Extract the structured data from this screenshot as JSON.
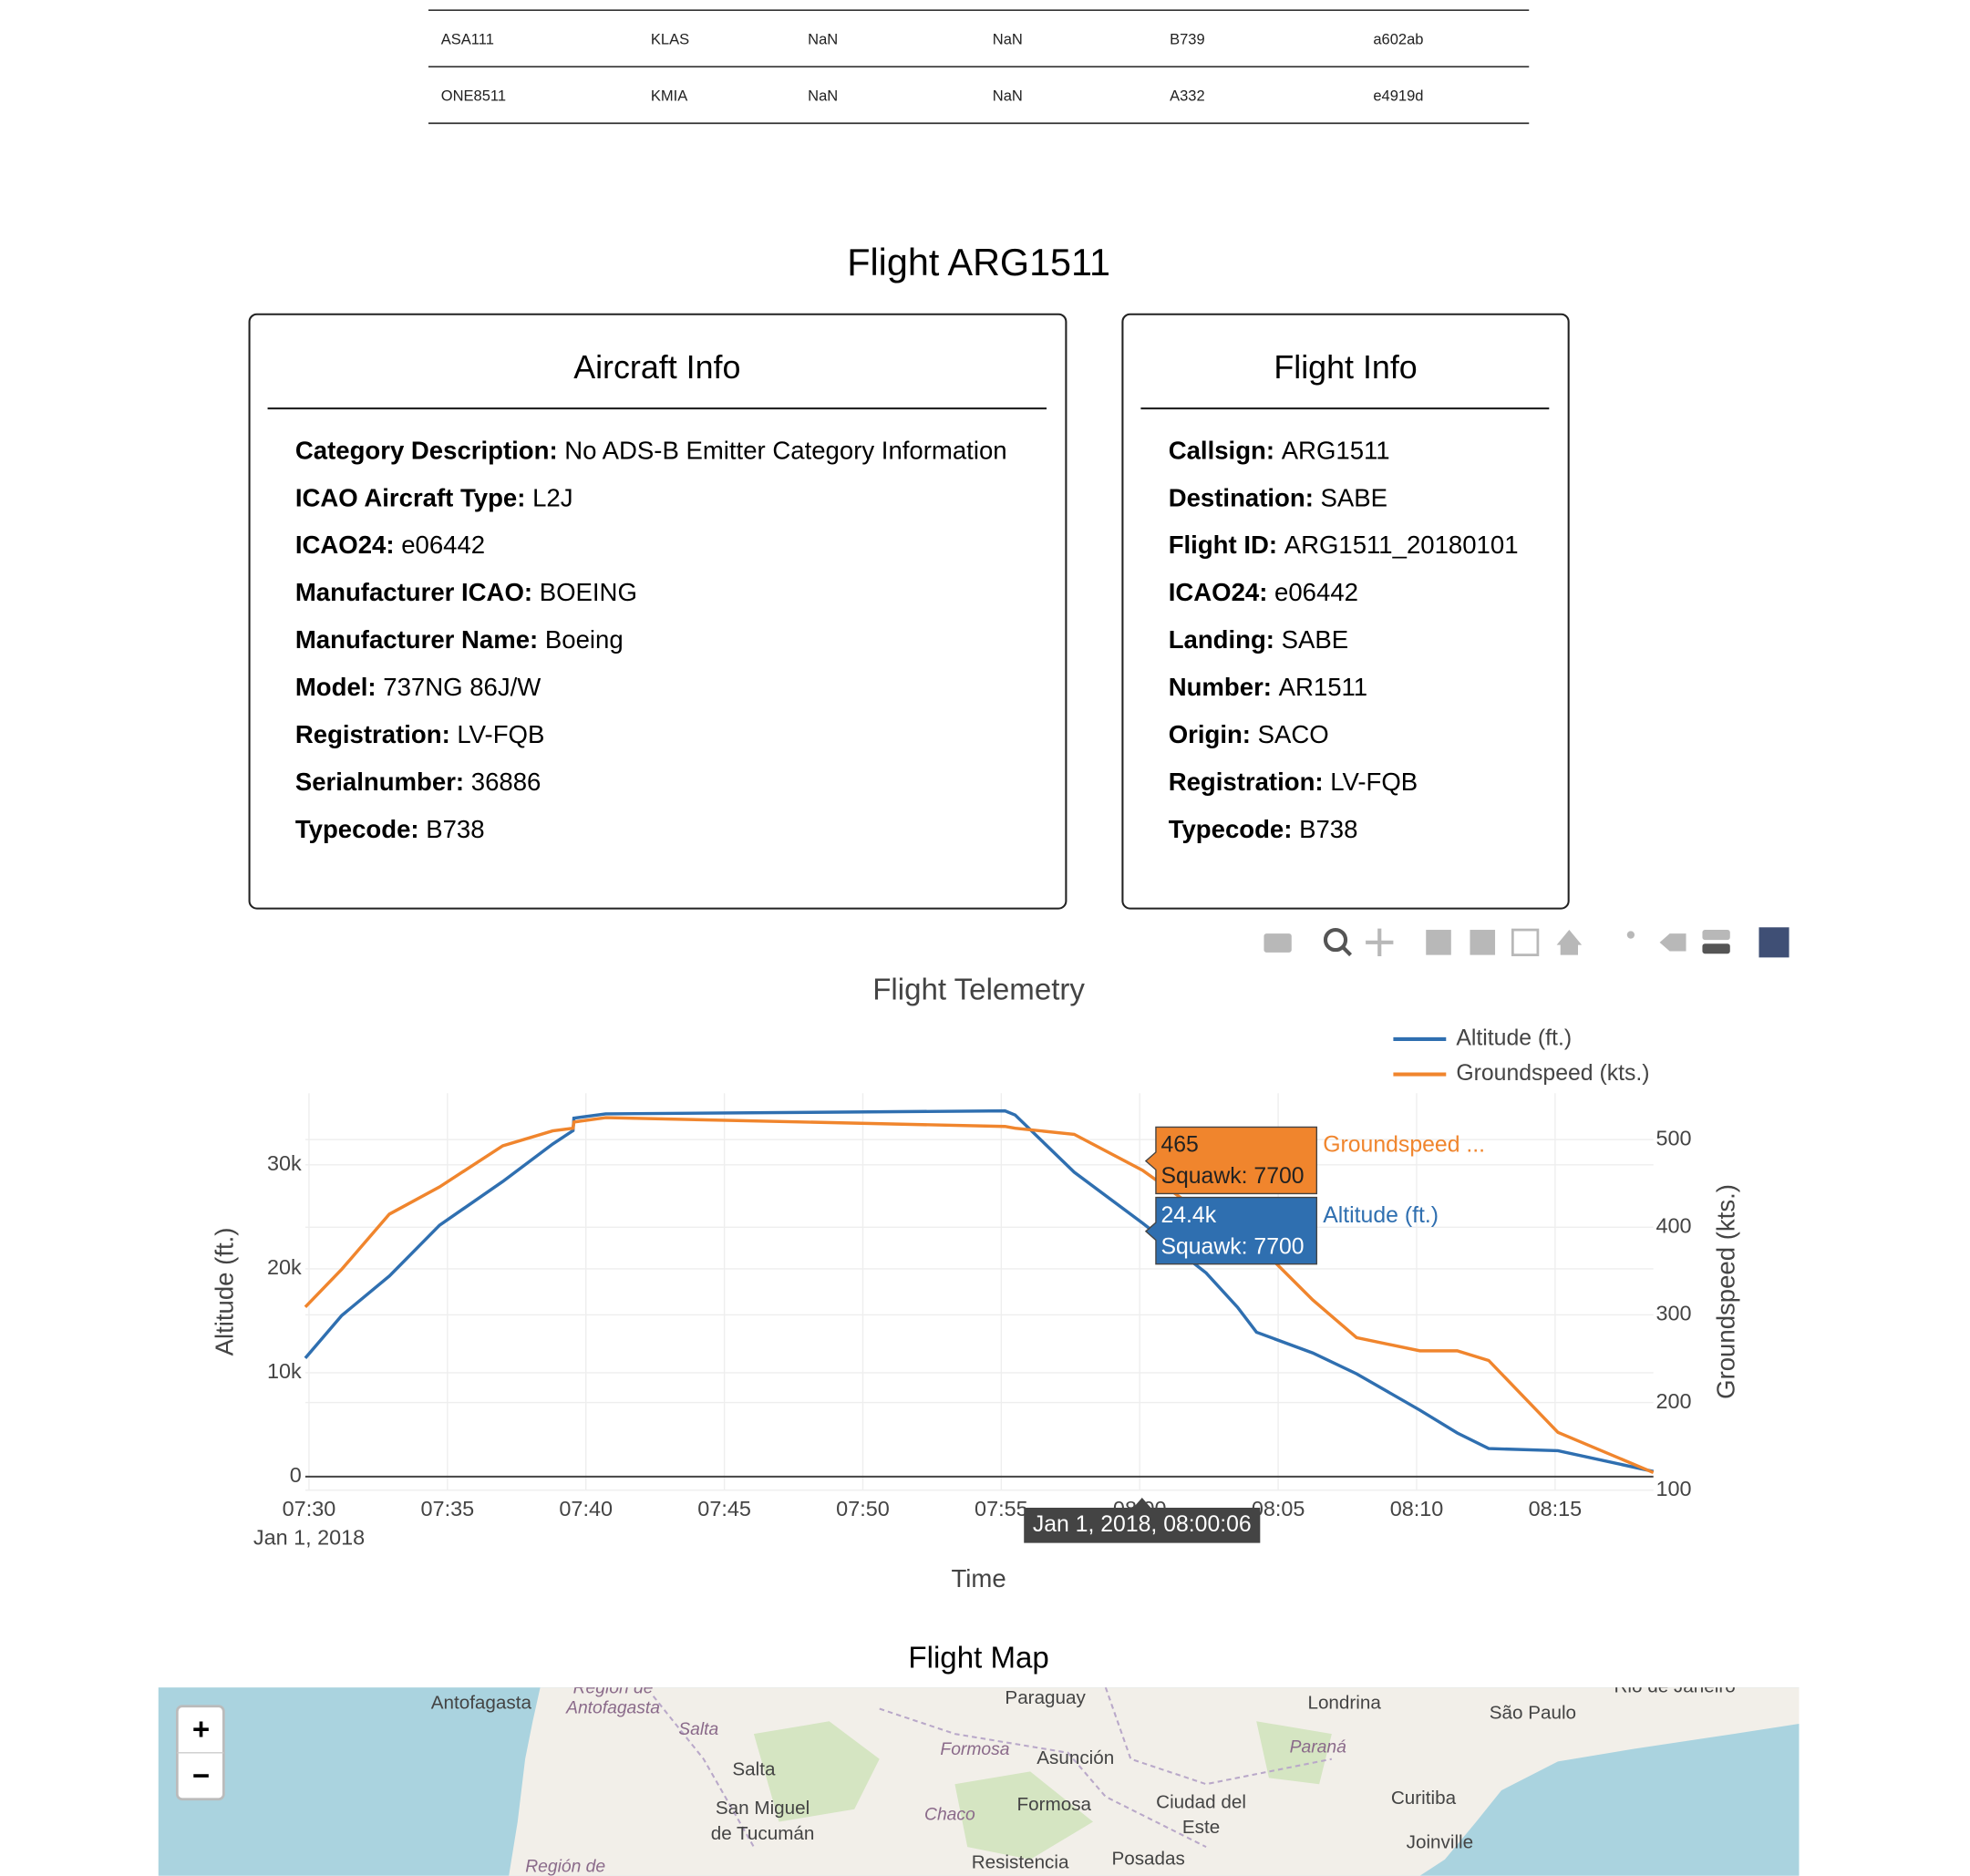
{
  "table": {
    "rows": [
      [
        "ASA111",
        "KLAS",
        "NaN",
        "NaN",
        "B739",
        "a602ab"
      ],
      [
        "ONE8511",
        "KMIA",
        "NaN",
        "NaN",
        "A332",
        "e4919d"
      ]
    ]
  },
  "heading": "Flight ARG1511",
  "aircraft_info": {
    "title": "Aircraft Info",
    "items": [
      {
        "label": "Category Description:",
        "value": "No ADS-B Emitter Category Information"
      },
      {
        "label": "ICAO Aircraft Type:",
        "value": "L2J"
      },
      {
        "label": "ICAO24:",
        "value": "e06442"
      },
      {
        "label": "Manufacturer ICAO:",
        "value": "BOEING"
      },
      {
        "label": "Manufacturer Name:",
        "value": "Boeing"
      },
      {
        "label": "Model:",
        "value": "737NG 86J/W"
      },
      {
        "label": "Registration:",
        "value": "LV-FQB"
      },
      {
        "label": "Serialnumber:",
        "value": "36886"
      },
      {
        "label": "Typecode:",
        "value": "B738"
      }
    ]
  },
  "flight_info": {
    "title": "Flight Info",
    "items": [
      {
        "label": "Callsign:",
        "value": "ARG1511"
      },
      {
        "label": "Destination:",
        "value": "SABE"
      },
      {
        "label": "Flight ID:",
        "value": "ARG1511_20180101"
      },
      {
        "label": "ICAO24:",
        "value": "e06442"
      },
      {
        "label": "Landing:",
        "value": "SABE"
      },
      {
        "label": "Number:",
        "value": "AR1511"
      },
      {
        "label": "Origin:",
        "value": "SACO"
      },
      {
        "label": "Registration:",
        "value": "LV-FQB"
      },
      {
        "label": "Typecode:",
        "value": "B738"
      }
    ]
  },
  "chart_data": {
    "type": "line",
    "title": "Flight Telemetry",
    "x_label": "Time",
    "y_label": "Altitude (ft.)",
    "y2_label": "Groundspeed (kts.)",
    "x_date_label": "Jan 1, 2018",
    "x": [
      "2018-01-01T07:29:52",
      "2018-01-01T07:31:11",
      "2018-01-01T07:32:54",
      "2018-01-01T07:34:43",
      "2018-01-01T07:37:00",
      "2018-01-01T07:38:48",
      "2018-01-01T07:39:32",
      "2018-01-01T07:39:34",
      "2018-01-01T07:40:43",
      "2018-01-01T07:55:08",
      "2018-01-01T07:55:30",
      "2018-01-01T07:57:38",
      "2018-01-01T08:00:06",
      "2018-01-01T08:02:24",
      "2018-01-01T08:03:32",
      "2018-01-01T08:04:13",
      "2018-01-01T08:06:15",
      "2018-01-01T08:07:50",
      "2018-01-01T08:10:07",
      "2018-01-01T08:11:28",
      "2018-01-01T08:12:36",
      "2018-01-01T08:15:06",
      "2018-01-01T08:18:33"
    ],
    "xlim": [
      "2018-01-01T07:29:52",
      "2018-01-01T08:18:33"
    ],
    "xticks": [
      {
        "value": "2018-01-01T07:30:00",
        "label": "07:30"
      },
      {
        "value": "2018-01-01T07:35:00",
        "label": "07:35"
      },
      {
        "value": "2018-01-01T07:40:00",
        "label": "07:40"
      },
      {
        "value": "2018-01-01T07:45:00",
        "label": "07:45"
      },
      {
        "value": "2018-01-01T07:50:00",
        "label": "07:50"
      },
      {
        "value": "2018-01-01T07:55:00",
        "label": "07:55"
      },
      {
        "value": "2018-01-01T08:00:00",
        "label": "08:00"
      },
      {
        "value": "2018-01-01T08:05:00",
        "label": "08:05"
      },
      {
        "value": "2018-01-01T08:10:00",
        "label": "08:10"
      },
      {
        "value": "2018-01-01T08:15:00",
        "label": "08:15"
      }
    ],
    "ylim": [
      -1300,
      36900
    ],
    "yticks": [
      0,
      {
        "value": 10000,
        "label": "10k"
      },
      {
        "value": 20000,
        "label": "20k"
      },
      {
        "value": 30000,
        "label": "30k"
      }
    ],
    "y2lim": [
      100,
      553
    ],
    "y2ticks": [
      100,
      200,
      300,
      400,
      500
    ],
    "grid": true,
    "legend": "top-right",
    "series": [
      {
        "name": "Altitude (ft.)",
        "color": "#2f6fb0",
        "values": [
          11400,
          15500,
          19300,
          24200,
          28400,
          32000,
          33300,
          34500,
          34900,
          35200,
          34800,
          29300,
          24400,
          19600,
          16300,
          13900,
          11900,
          9900,
          6400,
          4200,
          2700,
          2500,
          500
        ]
      },
      {
        "name": "Groundspeed (kts.)",
        "color": "#f0852d",
        "axis": "y2",
        "values": [
          309,
          352,
          415,
          446,
          493,
          510,
          513,
          520,
          525,
          515,
          513,
          506,
          465,
          413,
          403,
          381,
          317,
          274,
          259,
          259,
          248,
          166,
          120
        ]
      }
    ],
    "hover": {
      "x_label": "Jan 1, 2018, 08:00:06",
      "items": [
        {
          "value_label": "465",
          "detail": "Squawk: 7700",
          "name": "Groundspeed ..."
        },
        {
          "value_label": "24.4k",
          "detail": "Squawk: 7700",
          "name": "Altitude (ft.)"
        }
      ]
    }
  },
  "map": {
    "title": "Flight Map",
    "zoom_in": "+",
    "zoom_out": "−",
    "labels": [
      "Antofagasta",
      "Región de",
      "Antofagasta",
      "Paraguay",
      "Londrina",
      "São Paulo",
      "Rio de Janeiro",
      "Salta",
      "Formosa",
      "Asunción",
      "Paraná",
      "Salta",
      "San Miguel",
      "de Tucumán",
      "Chaco",
      "Formosa",
      "Ciudad del",
      "Este",
      "Curitiba",
      "Joinville",
      "Región de",
      "Resistencia",
      "Posadas"
    ]
  }
}
